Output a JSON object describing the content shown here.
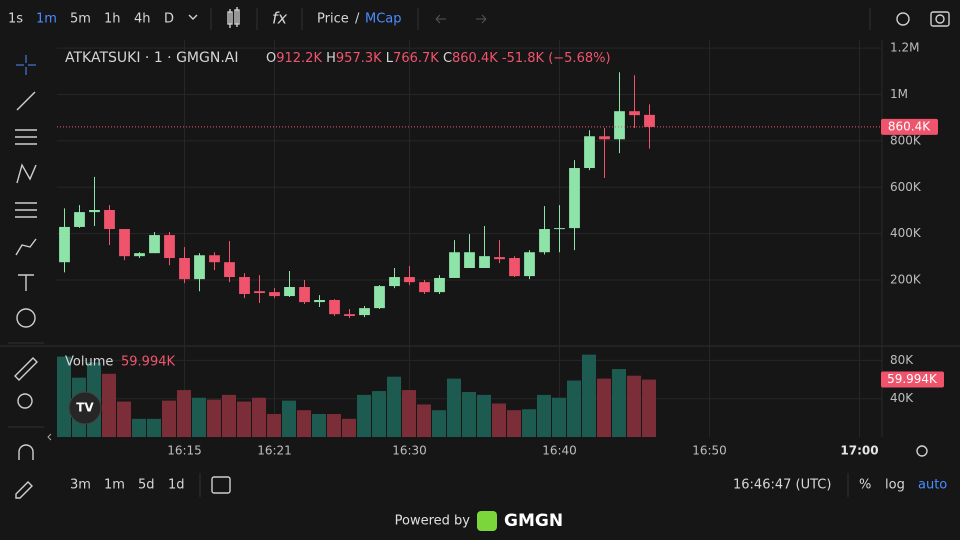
{
  "toolbar": {
    "intervals": [
      "1s",
      "1m",
      "5m",
      "1h",
      "4h",
      "D"
    ],
    "active_interval": 1,
    "price_label": "Price",
    "separator": "/",
    "mcap_label": "MCap"
  },
  "chart_data": {
    "type": "candlestick",
    "title": "ATKATSUKI · 1 · GMGN.AI",
    "legend": {
      "open_key": "O",
      "open": "912.2K",
      "high_key": "H",
      "high": "957.3K",
      "low_key": "L",
      "low": "766.7K",
      "close_key": "C",
      "close": "860.4K",
      "change": "-51.8K (−5.68%)"
    },
    "x": [
      "16:07",
      "16:08",
      "16:09",
      "16:10",
      "16:11",
      "16:12",
      "16:13",
      "16:14",
      "16:15",
      "16:16",
      "16:17",
      "16:18",
      "16:19",
      "16:20",
      "16:21",
      "16:22",
      "16:23",
      "16:24",
      "16:25",
      "16:26",
      "16:27",
      "16:28",
      "16:29",
      "16:30",
      "16:31",
      "16:32",
      "16:33",
      "16:34",
      "16:35",
      "16:36",
      "16:37",
      "16:38",
      "16:39",
      "16:40",
      "16:41",
      "16:42",
      "16:43",
      "16:44",
      "16:45",
      "16:46"
    ],
    "open": [
      277000,
      429000,
      493000,
      502000,
      420000,
      303000,
      316000,
      394000,
      295000,
      204000,
      307000,
      277000,
      213000,
      152000,
      148000,
      131000,
      170000,
      105000,
      114000,
      53000,
      49000,
      79000,
      174000,
      213000,
      191000,
      148000,
      209000,
      252000,
      252000,
      299000,
      295000,
      217000,
      320000,
      420000,
      424000,
      683000,
      820000,
      807000,
      928000,
      912200
    ],
    "high": [
      509000,
      523000,
      645000,
      523000,
      420000,
      320000,
      407000,
      407000,
      342000,
      316000,
      320000,
      368000,
      230000,
      221000,
      166000,
      239000,
      200000,
      135000,
      118000,
      75000,
      88000,
      178000,
      252000,
      260000,
      200000,
      221000,
      372000,
      398000,
      433000,
      372000,
      303000,
      329000,
      519000,
      523000,
      717000,
      846000,
      855000,
      1096000,
      1083000,
      957300
    ],
    "low": [
      233000,
      425000,
      433000,
      351000,
      286000,
      295000,
      316000,
      264000,
      187000,
      152000,
      243000,
      191000,
      122000,
      101000,
      122000,
      127000,
      97000,
      84000,
      45000,
      36000,
      40000,
      75000,
      165000,
      178000,
      140000,
      140000,
      209000,
      252000,
      252000,
      273000,
      213000,
      204000,
      310000,
      320000,
      329000,
      674000,
      640000,
      747000,
      855000,
      766700
    ],
    "close": [
      429000,
      493000,
      502000,
      420000,
      303000,
      316000,
      394000,
      295000,
      204000,
      307000,
      277000,
      213000,
      140000,
      144000,
      131000,
      170000,
      105000,
      114000,
      53000,
      45000,
      79000,
      174000,
      213000,
      191000,
      148000,
      209000,
      320000,
      320000,
      303000,
      290000,
      217000,
      320000,
      420000,
      424000,
      683000,
      820000,
      807000,
      928000,
      911000,
      860400
    ],
    "volume": [
      84000,
      62000,
      78000,
      66000,
      37000,
      19000,
      19000,
      38000,
      49000,
      41000,
      39000,
      44000,
      37000,
      41000,
      24000,
      38000,
      28000,
      24000,
      24000,
      19000,
      44000,
      48000,
      63000,
      49000,
      34000,
      28000,
      61000,
      47000,
      44000,
      35000,
      28000,
      29000,
      44000,
      41000,
      59000,
      86000,
      61000,
      71000,
      64000,
      59994
    ],
    "volume_name": "Volume",
    "volume_label": "59.994K",
    "last_label": "860.4K",
    "up_color": "#8ee3a8",
    "down_color": "#f0546d",
    "volume_up_color": "#1d5a50",
    "volume_down_color": "#7b2e37",
    "xlim": [
      "16:06:30",
      "17:01:30"
    ],
    "xticks": [
      "16:15",
      "16:21",
      "16:30",
      "16:40",
      "16:50",
      "17:00"
    ],
    "ylim": [
      -80000,
      1235000
    ],
    "yticks": [
      {
        "value": 200000,
        "label": "200K"
      },
      {
        "value": 400000,
        "label": "400K"
      },
      {
        "value": 600000,
        "label": "600K"
      },
      {
        "value": 800000,
        "label": "800K"
      },
      {
        "value": 1000000,
        "label": "1M"
      },
      {
        "value": 1200000,
        "label": "1.2M"
      }
    ],
    "volume_ylim": [
      0,
      94000
    ],
    "volume_yticks": [
      {
        "value": 40000,
        "label": "40K"
      },
      {
        "value": 80000,
        "label": "80K"
      }
    ],
    "grid": true
  },
  "bottom_bar": {
    "ranges": [
      "3m",
      "1m",
      "5d",
      "1d"
    ],
    "clock": "16:46:47 (UTC)",
    "percent": "%",
    "log": "log",
    "auto": "auto"
  },
  "footer": {
    "powered": "Powered by",
    "brand": "GMGN"
  }
}
